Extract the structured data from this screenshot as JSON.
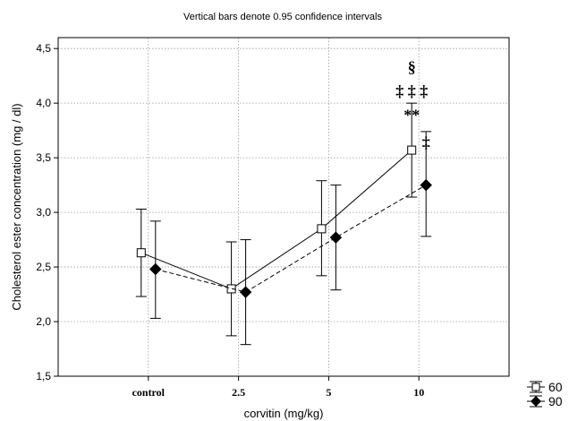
{
  "chart_data": {
    "type": "line",
    "title": "",
    "subtitle": "Vertical bars denote 0.95 confidence intervals",
    "xlabel": "corvitin (mg/kg)",
    "ylabel": "Cholesterol ester concentration (mg / dl)",
    "categories": [
      "control",
      "2.5",
      "5",
      "10"
    ],
    "ylim": [
      1.5,
      4.6
    ],
    "yticks": [
      "1,5",
      "2,0",
      "2,5",
      "3,0",
      "3,5",
      "4,0",
      "4,5"
    ],
    "grid": true,
    "legend_position": "bottom-right outside plot",
    "series": [
      {
        "name": "60",
        "marker": "open-square",
        "line": "solid",
        "color": "#000000",
        "values": [
          2.63,
          2.3,
          2.85,
          3.57
        ],
        "ci_low": [
          2.23,
          1.87,
          2.42,
          3.14
        ],
        "ci_high": [
          3.03,
          2.73,
          3.29,
          4.0
        ]
      },
      {
        "name": "90",
        "marker": "filled-diamond",
        "line": "dashed",
        "color": "#000000",
        "values": [
          2.48,
          2.27,
          2.77,
          3.25
        ],
        "ci_low": [
          2.03,
          1.79,
          2.29,
          2.78
        ],
        "ci_high": [
          2.92,
          2.75,
          3.25,
          3.74
        ]
      }
    ],
    "annotations": [
      {
        "text": "§",
        "category": "10",
        "y": 4.33
      },
      {
        "text": "‡ ‡ ‡",
        "category": "10",
        "y": 4.11
      },
      {
        "text": "**",
        "category": "10",
        "y": 3.89
      },
      {
        "text": "‡",
        "category": "10",
        "y": 3.64
      }
    ]
  }
}
